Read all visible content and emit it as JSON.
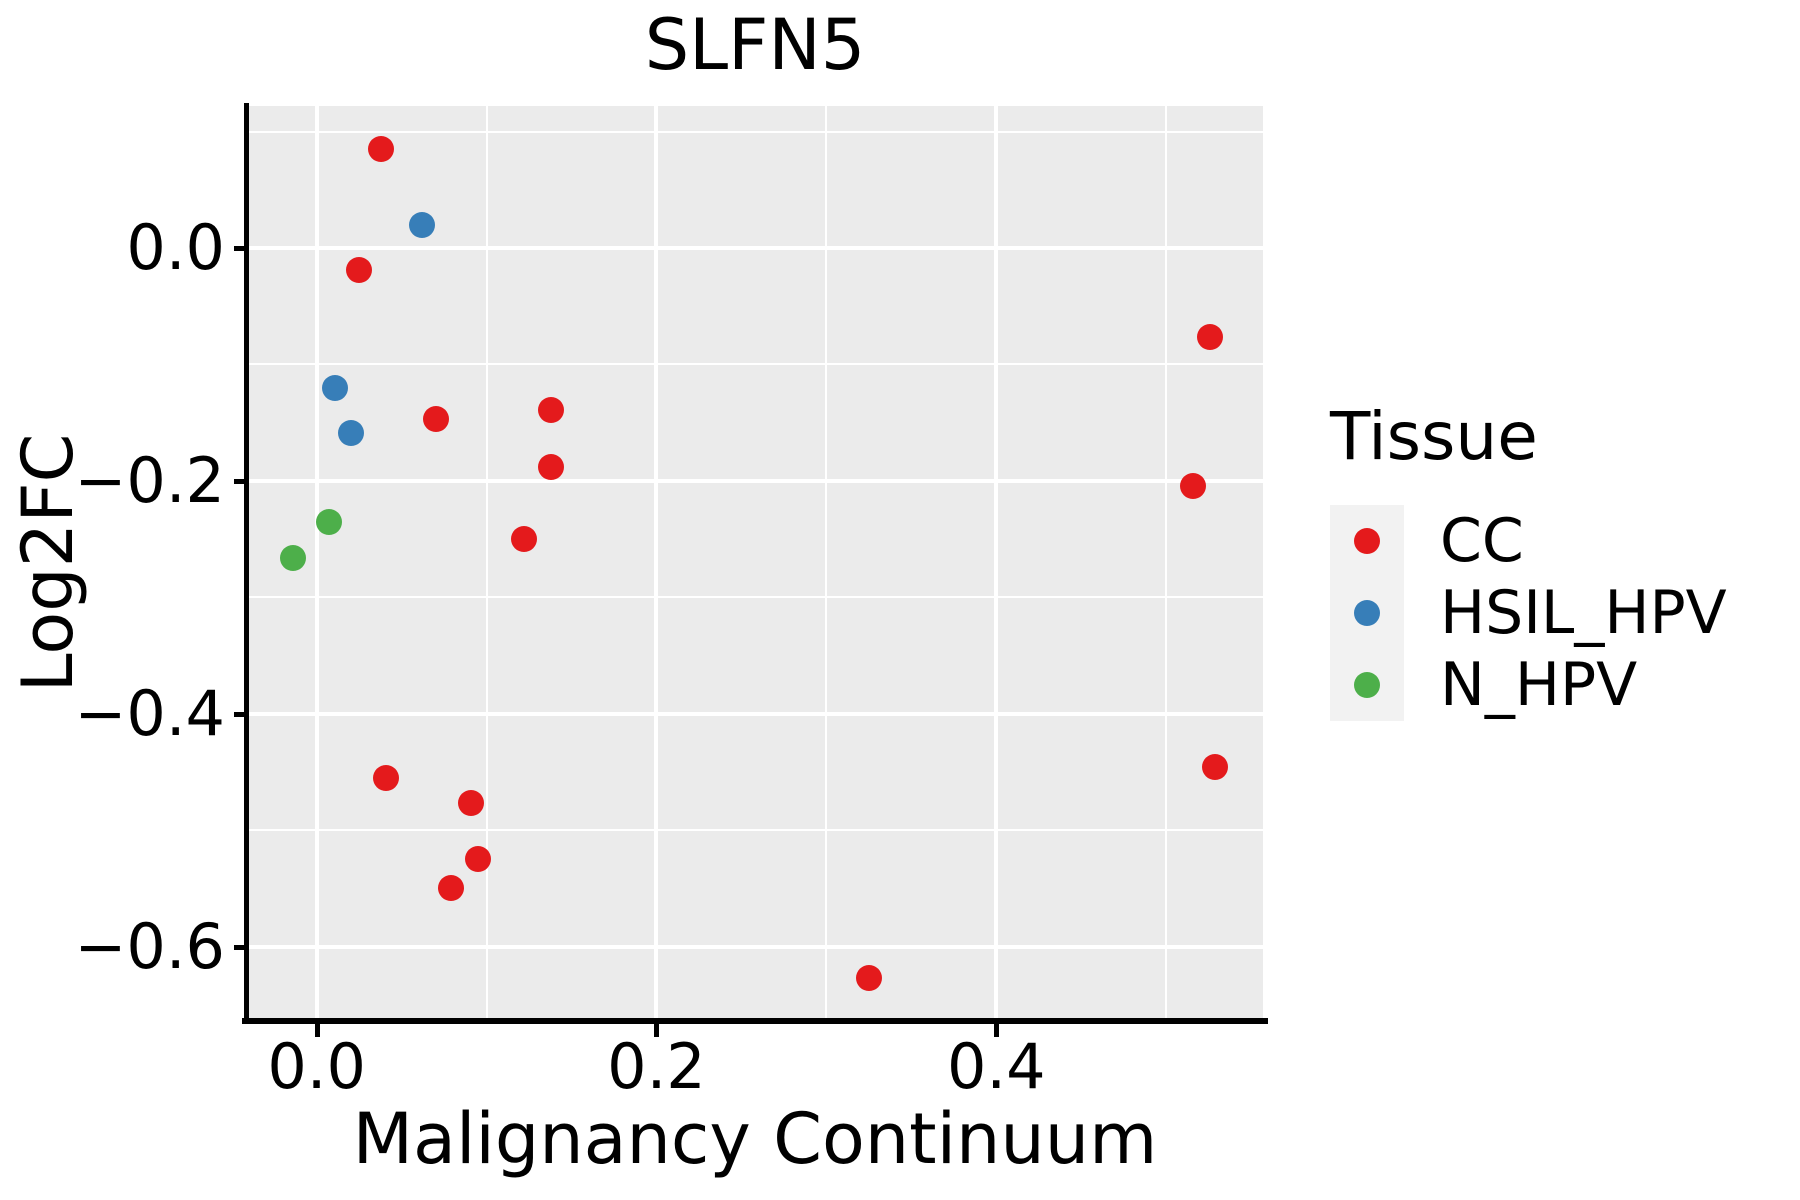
{
  "chart_data": {
    "type": "scatter",
    "title": "SLFN5",
    "xlabel": "Malignancy Continuum",
    "ylabel": "Log2FC",
    "panel_bg": "#EBEBEB",
    "grid_color": "#FFFFFF",
    "axis_color": "#000000",
    "point_color_red": "#E41A1C",
    "point_color_blue": "#377EB8",
    "point_color_green": "#4DAF4A",
    "grid": true,
    "xlim": [
      -0.041,
      0.557
    ],
    "ylim": [
      -0.663,
      0.122
    ],
    "x_ticks": [
      {
        "value": 0.0,
        "label": "0.0"
      },
      {
        "value": 0.2,
        "label": "0.2"
      },
      {
        "value": 0.4,
        "label": "0.4"
      }
    ],
    "y_ticks": [
      {
        "value": 0.0,
        "label": "0.0"
      },
      {
        "value": -0.2,
        "label": "−0.2"
      },
      {
        "value": -0.4,
        "label": "−0.4"
      },
      {
        "value": -0.6,
        "label": "−0.6"
      }
    ],
    "x_minor_ticks": [
      0.1,
      0.3,
      0.5
    ],
    "y_minor_ticks": [
      0.1,
      -0.1,
      -0.3,
      -0.5
    ],
    "legend": {
      "title": "Tissue",
      "position": "right",
      "items": [
        {
          "label": "CC",
          "color": "#E41A1C"
        },
        {
          "label": "HSIL_HPV",
          "color": "#377EB8"
        },
        {
          "label": "N_HPV",
          "color": "#4DAF4A"
        }
      ]
    },
    "series": [
      {
        "name": "CC",
        "color": "#E41A1C",
        "points": [
          [
            0.038,
            0.085
          ],
          [
            0.025,
            -0.019
          ],
          [
            0.07,
            -0.147
          ],
          [
            0.138,
            -0.139
          ],
          [
            0.138,
            -0.188
          ],
          [
            0.122,
            -0.25
          ],
          [
            0.041,
            -0.455
          ],
          [
            0.091,
            -0.477
          ],
          [
            0.095,
            -0.525
          ],
          [
            0.079,
            -0.55
          ],
          [
            0.325,
            -0.627
          ],
          [
            0.526,
            -0.076
          ],
          [
            0.516,
            -0.204
          ],
          [
            0.529,
            -0.446
          ]
        ]
      },
      {
        "name": "HSIL_HPV",
        "color": "#377EB8",
        "points": [
          [
            0.062,
            0.02
          ],
          [
            0.011,
            -0.12
          ],
          [
            0.02,
            -0.159
          ]
        ]
      },
      {
        "name": "N_HPV",
        "color": "#4DAF4A",
        "points": [
          [
            0.007,
            -0.235
          ],
          [
            -0.014,
            -0.266
          ]
        ]
      }
    ]
  }
}
